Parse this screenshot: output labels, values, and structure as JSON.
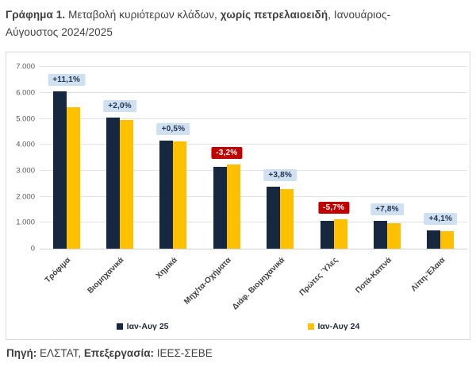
{
  "title": {
    "label": "Γράφημα 1.",
    "part1": " Μεταβολή κυριότερων κλάδων, ",
    "bold_part": "χωρίς πετρελαιοειδή",
    "part2": ", Ιανουάριος-Αύγουστος 2024/2025"
  },
  "footer": {
    "source_label": "Πηγή:",
    "source_value": " ΕΛΣΤΑΤ, ",
    "processing_label": "Επεξεργασία:",
    "processing_value": " ΙΕΕΣ-ΣΕΒΕ"
  },
  "colors": {
    "series_2025": "#162740",
    "series_2024": "#FFC000",
    "badge_positive_bg": "#CFE0F1",
    "badge_positive_text": "#1F3250",
    "badge_negative_bg": "#C00000",
    "badge_negative_text": "#FFFFFF",
    "gridline": "#E2E2E2",
    "frame_border": "#D9D9D9"
  },
  "chart_data": {
    "type": "bar",
    "title": "Μεταβολή κυριότερων κλάδων, χωρίς πετρελαιοειδή, Ιανουάριος-Αύγουστος 2024/2025",
    "categories": [
      "Τρόφιμα",
      "Βιομηχανικά",
      "Χημικά",
      "Μηχ/τα-Οχήματα",
      "Διάφ. Βιομηχανικά",
      "Πρώτες Ύλες",
      "Ποτά-Καπνά",
      "Λίπη-Έλαια"
    ],
    "series": [
      {
        "name": "Ιαν-Αυγ 25",
        "color": "#162740",
        "values": [
          6050,
          5060,
          4165,
          3145,
          2400,
          1080,
          1070,
          700
        ]
      },
      {
        "name": "Ιαν-Αυγ 24",
        "color": "#FFC000",
        "values": [
          5445,
          4960,
          4145,
          3250,
          2312,
          1145,
          993,
          672
        ]
      }
    ],
    "change_labels": [
      {
        "text": "+11,1%",
        "negative": false
      },
      {
        "text": "+2,0%",
        "negative": false
      },
      {
        "text": "+0,5%",
        "negative": false
      },
      {
        "text": "-3,2%",
        "negative": true
      },
      {
        "text": "+3,8%",
        "negative": false
      },
      {
        "text": "-5,7%",
        "negative": true
      },
      {
        "text": "+7,8%",
        "negative": false
      },
      {
        "text": "+4,1%",
        "negative": false
      }
    ],
    "ylim": [
      0,
      7000
    ],
    "yticks": [
      {
        "value": 0,
        "label": "0"
      },
      {
        "value": 1000,
        "label": "1.000"
      },
      {
        "value": 2000,
        "label": "2.000"
      },
      {
        "value": 3000,
        "label": "3.000"
      },
      {
        "value": 4000,
        "label": "4.000"
      },
      {
        "value": 5000,
        "label": "5.000"
      },
      {
        "value": 6000,
        "label": "6.000"
      },
      {
        "value": 7000,
        "label": "7.000"
      }
    ],
    "grid": true,
    "legend_position": "bottom",
    "xlabel": "",
    "ylabel": ""
  }
}
